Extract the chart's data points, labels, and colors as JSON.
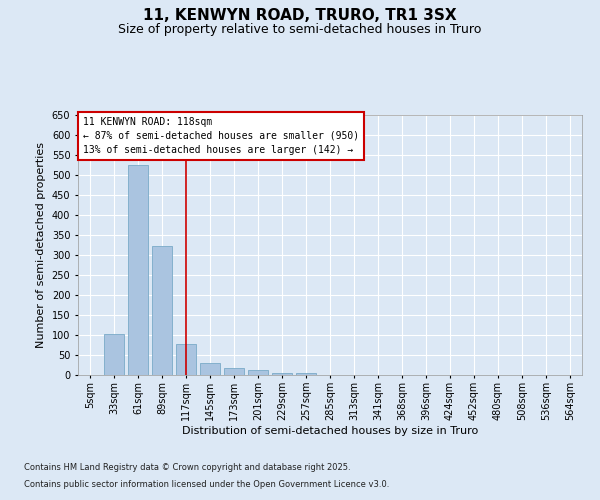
{
  "title": "11, KENWYN ROAD, TRURO, TR1 3SX",
  "subtitle": "Size of property relative to semi-detached houses in Truro",
  "xlabel": "Distribution of semi-detached houses by size in Truro",
  "ylabel": "Number of semi-detached properties",
  "categories": [
    "5sqm",
    "33sqm",
    "61sqm",
    "89sqm",
    "117sqm",
    "145sqm",
    "173sqm",
    "201sqm",
    "229sqm",
    "257sqm",
    "285sqm",
    "313sqm",
    "341sqm",
    "368sqm",
    "396sqm",
    "424sqm",
    "452sqm",
    "480sqm",
    "508sqm",
    "536sqm",
    "564sqm"
  ],
  "values": [
    0,
    103,
    525,
    322,
    78,
    30,
    18,
    12,
    5,
    6,
    0,
    0,
    0,
    0,
    0,
    0,
    0,
    0,
    0,
    0,
    0
  ],
  "bar_color": "#aac4e0",
  "bar_edge_color": "#7aaac8",
  "vline_color": "#cc0000",
  "vline_bin_index": 4,
  "annotation_text": "11 KENWYN ROAD: 118sqm\n← 87% of semi-detached houses are smaller (950)\n13% of semi-detached houses are larger (142) →",
  "annotation_box_facecolor": "#ffffff",
  "annotation_box_edgecolor": "#cc0000",
  "ylim": [
    0,
    650
  ],
  "yticks": [
    0,
    50,
    100,
    150,
    200,
    250,
    300,
    350,
    400,
    450,
    500,
    550,
    600,
    650
  ],
  "footnote1": "Contains HM Land Registry data © Crown copyright and database right 2025.",
  "footnote2": "Contains public sector information licensed under the Open Government Licence v3.0.",
  "background_color": "#dce8f5",
  "plot_bg_color": "#dce8f5",
  "grid_color": "#ffffff",
  "title_fontsize": 11,
  "subtitle_fontsize": 9,
  "axis_label_fontsize": 8,
  "tick_fontsize": 7,
  "annotation_fontsize": 7,
  "footnote_fontsize": 6
}
